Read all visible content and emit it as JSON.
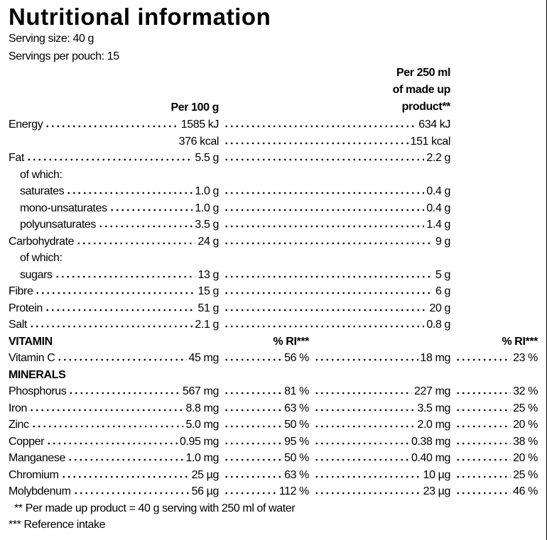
{
  "title": "Nutritional information",
  "serving_size": "Serving size: 40 g",
  "servings_per_pouch": "Servings per pouch: 15",
  "column_headers": {
    "per_100g": "Per 100 g",
    "per_250ml": [
      "Per 250 ml",
      "of made up",
      "product**"
    ]
  },
  "nutrients": [
    {
      "label": "Energy",
      "per_100g": [
        "1585 kJ",
        "376 kcal"
      ],
      "per_250ml": [
        "634 kJ",
        "151 kcal"
      ]
    },
    {
      "label": "Fat",
      "per_100g": "5.5 g",
      "per_250ml": "2.2 g",
      "sub_heading": "of which:",
      "sub_rows": [
        {
          "label": "saturates",
          "per_100g": "1.0 g",
          "per_250ml": "0.4 g"
        },
        {
          "label": "mono-unsaturates",
          "per_100g": "1.0 g",
          "per_250ml": "0.4 g"
        },
        {
          "label": "polyunsaturates",
          "per_100g": "3.5 g",
          "per_250ml": "1.4 g"
        }
      ]
    },
    {
      "label": "Carbohydrate",
      "per_100g": "24 g",
      "per_250ml": "9 g",
      "sub_heading": "of which:",
      "sub_rows": [
        {
          "label": "sugars",
          "per_100g": "13 g",
          "per_250ml": "5 g"
        }
      ]
    },
    {
      "label": "Fibre",
      "per_100g": "15 g",
      "per_250ml": "6 g"
    },
    {
      "label": "Protein",
      "per_100g": "51 g",
      "per_250ml": "20 g"
    },
    {
      "label": "Salt",
      "per_100g": "2.1 g",
      "per_250ml": "0.8 g"
    }
  ],
  "vitamins": {
    "heading": "VITAMIN",
    "ri_headers": [
      "% RI***",
      "% RI***"
    ],
    "rows": [
      {
        "label": "Vitamin C",
        "per_100g": "45 mg",
        "ri_100g": "56 %",
        "per_250ml": "18 mg",
        "ri_250ml": "23 %"
      }
    ]
  },
  "minerals": {
    "heading": "MINERALS",
    "rows": [
      {
        "label": "Phosphorus",
        "per_100g": "567 mg",
        "ri_100g": "81 %",
        "per_250ml": "227 mg",
        "ri_250ml": "32 %"
      },
      {
        "label": "Iron",
        "per_100g": "8.8 mg",
        "ri_100g": "63 %",
        "per_250ml": "3.5 mg",
        "ri_250ml": "25 %"
      },
      {
        "label": "Zinc",
        "per_100g": "5.0 mg",
        "ri_100g": "50 %",
        "per_250ml": "2.0 mg",
        "ri_250ml": "20 %"
      },
      {
        "label": "Copper",
        "per_100g": "0.95 mg",
        "ri_100g": "95 %",
        "per_250ml": "0.38 mg",
        "ri_250ml": "38 %"
      },
      {
        "label": "Manganese",
        "per_100g": "1.0 mg",
        "ri_100g": "50 %",
        "per_250ml": "0.40 mg",
        "ri_250ml": "20 %"
      },
      {
        "label": "Chromium",
        "per_100g": "25 µg",
        "ri_100g": "63 %",
        "per_250ml": "10 µg",
        "ri_250ml": "25 %"
      },
      {
        "label": "Molybdenum",
        "per_100g": "56 µg",
        "ri_100g": "112 %",
        "per_250ml": "23 µg",
        "ri_250ml": "46 %"
      }
    ]
  },
  "footnotes": [
    "** Per made up product = 40 g serving with 250 ml of water",
    "*** Reference intake"
  ]
}
